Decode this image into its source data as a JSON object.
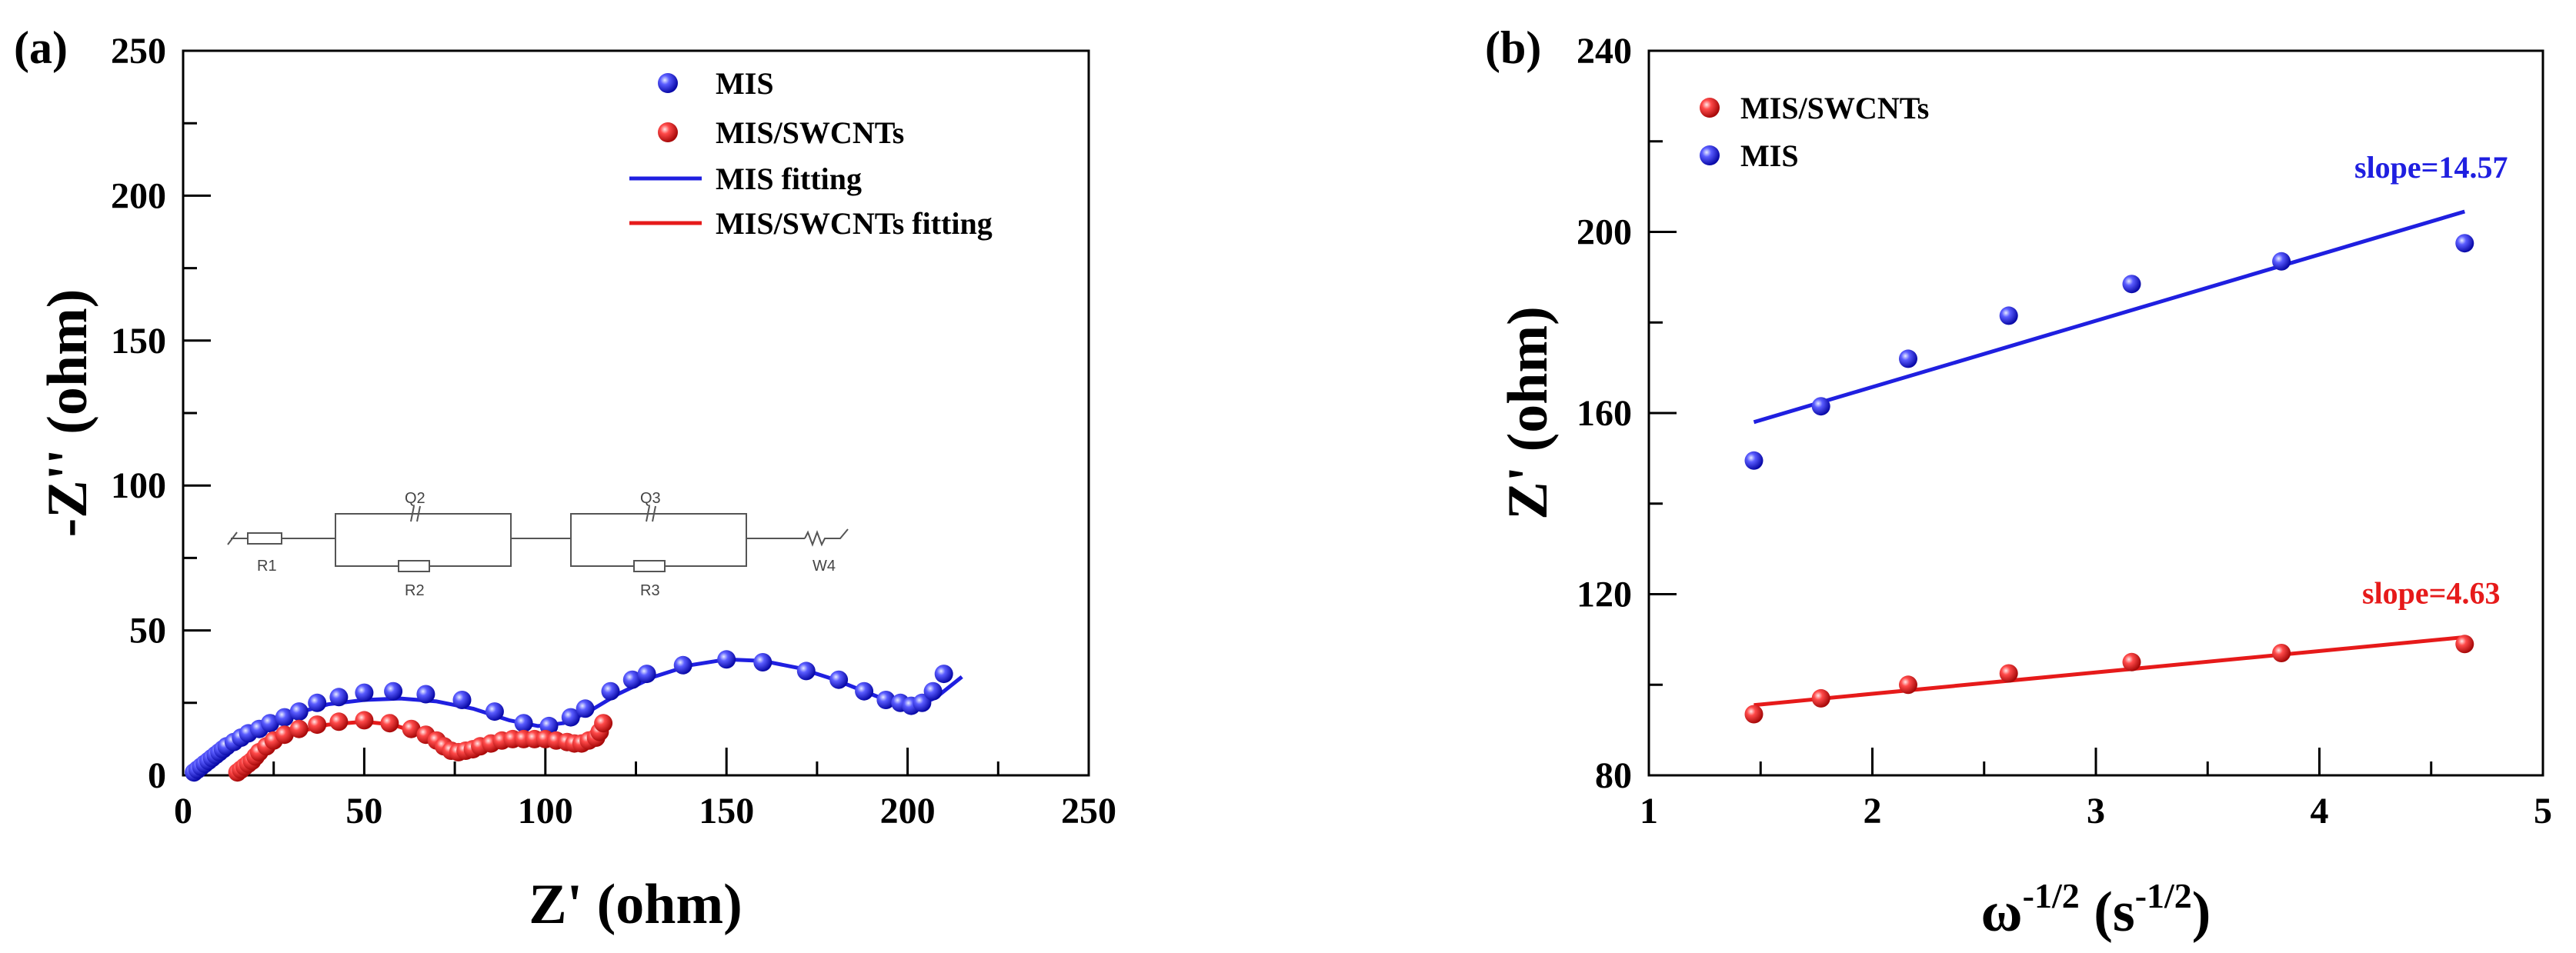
{
  "chart_data": [
    {
      "type": "scatter",
      "panel_label": "(a)",
      "xlabel": "Z' (ohm)",
      "ylabel": "-Z'' (ohm)",
      "xlim": [
        0,
        250
      ],
      "ylim": [
        0,
        250
      ],
      "xticks": [
        0,
        50,
        100,
        150,
        200,
        250
      ],
      "yticks": [
        0,
        50,
        100,
        150,
        200,
        250
      ],
      "xtick_labels": [
        "0",
        "50",
        "100",
        "150",
        "200",
        "250"
      ],
      "ytick_labels": [
        "0",
        "50",
        "100",
        "150",
        "200",
        "250"
      ],
      "legend": [
        "MIS",
        "MIS/SWCNTs",
        "MIS fitting",
        "MIS/SWCNTs fitting"
      ],
      "legend_position": "top-right",
      "series": [
        {
          "name": "MIS",
          "kind": "scatter",
          "color": "#1f1fe0",
          "points": [
            [
              3,
              1
            ],
            [
              4,
              2
            ],
            [
              5,
              3
            ],
            [
              6,
              4
            ],
            [
              7,
              5
            ],
            [
              8,
              6
            ],
            [
              9,
              7
            ],
            [
              10,
              8
            ],
            [
              11,
              9
            ],
            [
              12,
              10
            ],
            [
              14,
              11.5
            ],
            [
              16,
              13
            ],
            [
              18,
              14.5
            ],
            [
              21,
              16
            ],
            [
              24,
              18
            ],
            [
              28,
              20
            ],
            [
              32,
              22
            ],
            [
              37,
              25
            ],
            [
              43,
              27
            ],
            [
              50,
              28.5
            ],
            [
              58,
              29
            ],
            [
              67,
              28
            ],
            [
              77,
              26
            ],
            [
              86,
              22
            ],
            [
              94,
              18
            ],
            [
              101,
              17
            ],
            [
              107,
              20
            ],
            [
              111,
              23
            ],
            [
              118,
              29
            ],
            [
              124,
              33
            ],
            [
              128,
              35
            ],
            [
              138,
              38
            ],
            [
              150,
              40
            ],
            [
              160,
              39
            ],
            [
              172,
              36
            ],
            [
              181,
              33
            ],
            [
              188,
              29
            ],
            [
              194,
              26
            ],
            [
              198,
              25
            ],
            [
              201,
              24
            ],
            [
              204,
              25
            ],
            [
              207,
              29
            ],
            [
              210,
              35
            ]
          ]
        },
        {
          "name": "MIS/SWCNTs",
          "kind": "scatter",
          "color": "#e61a1a",
          "points": [
            [
              15,
              1
            ],
            [
              16,
              2
            ],
            [
              17,
              3
            ],
            [
              18,
              4
            ],
            [
              19,
              5
            ],
            [
              20,
              6.5
            ],
            [
              21,
              8
            ],
            [
              23,
              10
            ],
            [
              25,
              12
            ],
            [
              28,
              14
            ],
            [
              32,
              16
            ],
            [
              37,
              17.5
            ],
            [
              43,
              18.5
            ],
            [
              50,
              19
            ],
            [
              57,
              18
            ],
            [
              63,
              16
            ],
            [
              67,
              14
            ],
            [
              70,
              12
            ],
            [
              72,
              10
            ],
            [
              74,
              8.5
            ],
            [
              76,
              8
            ],
            [
              78,
              8.5
            ],
            [
              80,
              9
            ],
            [
              82,
              10
            ],
            [
              85,
              11
            ],
            [
              88,
              12
            ],
            [
              91,
              12.5
            ],
            [
              94,
              12.5
            ],
            [
              97,
              12.5
            ],
            [
              100,
              12.5
            ],
            [
              103,
              12
            ],
            [
              106,
              11.5
            ],
            [
              108,
              11
            ],
            [
              110,
              11
            ],
            [
              112,
              12
            ],
            [
              114,
              13
            ],
            [
              115,
              15
            ],
            [
              116,
              18
            ]
          ]
        },
        {
          "name": "MIS fitting",
          "kind": "line",
          "color": "#1f1fe0",
          "points": [
            [
              3,
              0
            ],
            [
              6,
              4
            ],
            [
              10,
              8
            ],
            [
              15,
              12
            ],
            [
              22,
              17
            ],
            [
              30,
              21
            ],
            [
              40,
              24.5
            ],
            [
              50,
              26
            ],
            [
              60,
              26.5
            ],
            [
              70,
              25.5
            ],
            [
              80,
              23
            ],
            [
              90,
              19
            ],
            [
              98,
              17
            ],
            [
              105,
              18
            ],
            [
              112,
              22
            ],
            [
              120,
              28
            ],
            [
              130,
              34
            ],
            [
              140,
              38
            ],
            [
              150,
              40
            ],
            [
              160,
              39.5
            ],
            [
              170,
              37
            ],
            [
              180,
              33
            ],
            [
              190,
              28
            ],
            [
              198,
              24
            ],
            [
              203,
              24
            ],
            [
              208,
              27
            ],
            [
              212,
              31
            ],
            [
              215,
              34
            ]
          ]
        },
        {
          "name": "MIS/SWCNTs fitting",
          "kind": "line",
          "color": "#e61a1a",
          "points": [
            [
              14,
              0
            ],
            [
              17,
              3
            ],
            [
              20,
              6
            ],
            [
              25,
              11
            ],
            [
              32,
              15
            ],
            [
              40,
              17.5
            ],
            [
              50,
              18.5
            ],
            [
              58,
              17.5
            ],
            [
              65,
              14.5
            ],
            [
              70,
              11
            ],
            [
              74,
              8.5
            ],
            [
              78,
              8.5
            ],
            [
              83,
              10
            ],
            [
              90,
              12
            ],
            [
              100,
              12.5
            ],
            [
              108,
              11.5
            ],
            [
              112,
              12
            ],
            [
              115,
              14
            ],
            [
              117,
              17
            ]
          ]
        }
      ],
      "inset_circuit": {
        "elements": [
          "R1",
          "Q2",
          "R2",
          "Q3",
          "R3",
          "W4"
        ]
      }
    },
    {
      "type": "scatter",
      "panel_label": "(b)",
      "xlabel": "ω-1/2 (s-1/2)",
      "xlabel_parts": {
        "symbol": "ω",
        "exp1": "-1/2",
        "mid": " (s",
        "exp2": "-1/2",
        "end": ")"
      },
      "ylabel": "Z' (ohm)",
      "xlim": [
        1,
        5
      ],
      "ylim": [
        80,
        240
      ],
      "xticks": [
        1,
        2,
        3,
        4,
        5
      ],
      "yticks": [
        80,
        120,
        160,
        200,
        240
      ],
      "xtick_labels": [
        "1",
        "2",
        "3",
        "4",
        "5"
      ],
      "ytick_labels": [
        "80",
        "120",
        "160",
        "200",
        "240"
      ],
      "legend": [
        "MIS/SWCNTs",
        "MIS"
      ],
      "legend_position": "top-left",
      "series": [
        {
          "name": "MIS/SWCNTs",
          "kind": "scatter",
          "color": "#e61a1a",
          "points": [
            [
              1.47,
              93.5
            ],
            [
              1.77,
              97
            ],
            [
              2.16,
              100
            ],
            [
              2.61,
              102.5
            ],
            [
              3.16,
              105
            ],
            [
              3.83,
              107
            ],
            [
              4.65,
              109
            ]
          ]
        },
        {
          "name": "MIS",
          "kind": "scatter",
          "color": "#1f1fe0",
          "points": [
            [
              1.47,
              149.5
            ],
            [
              1.77,
              161.5
            ],
            [
              2.16,
              172
            ],
            [
              2.61,
              181.5
            ],
            [
              3.16,
              188.5
            ],
            [
              3.83,
              193.5
            ],
            [
              4.65,
              197.5
            ]
          ]
        },
        {
          "name": "MIS/SWCNTs fit",
          "kind": "line",
          "color": "#e61a1a",
          "points": [
            [
              1.47,
              95.5
            ],
            [
              4.65,
              110.5
            ]
          ]
        },
        {
          "name": "MIS fit",
          "kind": "line",
          "color": "#1f1fe0",
          "points": [
            [
              1.47,
              158
            ],
            [
              4.65,
              204.5
            ]
          ]
        }
      ],
      "annotations": [
        {
          "text": "slope=14.57",
          "color": "#1f1fe0",
          "at": [
            4.5,
            212
          ]
        },
        {
          "text": "slope=4.63",
          "color": "#e61a1a",
          "at": [
            4.5,
            118
          ]
        }
      ]
    }
  ]
}
